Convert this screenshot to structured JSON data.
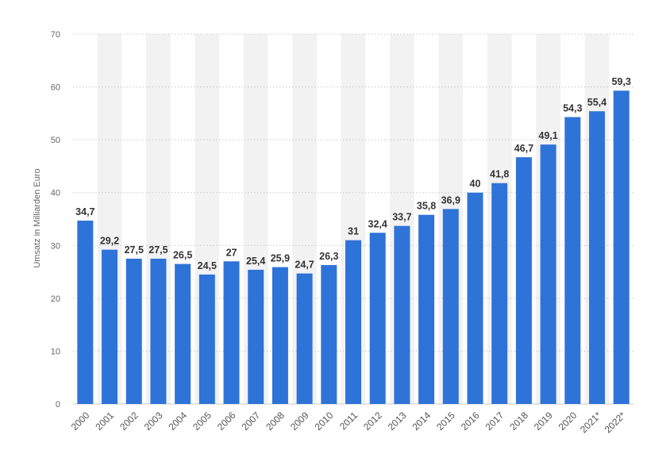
{
  "chart_data": {
    "type": "bar",
    "title": "",
    "xlabel": "",
    "ylabel": "Umsatz in Milliarden Euro",
    "ylim": [
      0,
      70
    ],
    "yticks": [
      0,
      10,
      20,
      30,
      40,
      50,
      60,
      70
    ],
    "grid": true,
    "categories": [
      "2000",
      "2001",
      "2002",
      "2003",
      "2004",
      "2005",
      "2006",
      "2007",
      "2008",
      "2009",
      "2010",
      "2011",
      "2012",
      "2013",
      "2014",
      "2015",
      "2016",
      "2017",
      "2018",
      "2019",
      "2020",
      "2021*",
      "2022*"
    ],
    "values": [
      34.7,
      29.2,
      27.5,
      27.5,
      26.5,
      24.5,
      27,
      25.4,
      25.9,
      24.7,
      26.3,
      31,
      32.4,
      33.7,
      35.8,
      36.9,
      40,
      41.8,
      46.7,
      49.1,
      54.3,
      55.4,
      59.3
    ],
    "value_labels": [
      "34,7",
      "29,2",
      "27,5",
      "27,5",
      "26,5",
      "24,5",
      "27",
      "25,4",
      "25,9",
      "24,7",
      "26,3",
      "31",
      "32,4",
      "33,7",
      "35,8",
      "36,9",
      "40",
      "41,8",
      "46,7",
      "49,1",
      "54,3",
      "55,4",
      "59,3"
    ],
    "bar_color": "#2e73d8",
    "band_color": "#f2f2f2"
  }
}
